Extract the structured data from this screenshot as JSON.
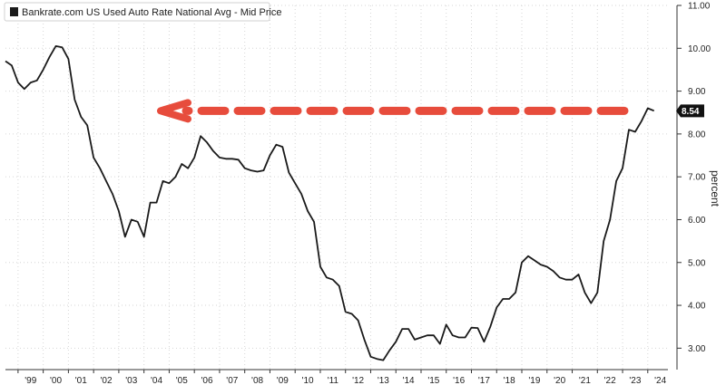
{
  "chart_data": {
    "type": "line",
    "title": "Bankrate.com US Used Auto Rate National Avg - Mid Price",
    "ylabel": "percent",
    "xlabel": "",
    "ylim": [
      2.5,
      11.0
    ],
    "xlim": [
      1998.5,
      2024.8
    ],
    "grid": true,
    "legend_position": "top-left",
    "y_ticks": [
      "3.00",
      "4.00",
      "5.00",
      "6.00",
      "7.00",
      "8.00",
      "9.00",
      "10.00",
      "11.00"
    ],
    "x_ticks": [
      "'99",
      "'00",
      "'01",
      "'02",
      "'03",
      "'04",
      "'05",
      "'06",
      "'07",
      "'08",
      "'09",
      "'10",
      "'11",
      "'12",
      "'13",
      "'14",
      "'15",
      "'16",
      "'17",
      "'18",
      "'19",
      "'20",
      "'21",
      "'22",
      "'23",
      "'24"
    ],
    "last_value_label": "8.54",
    "series": [
      {
        "name": "Bankrate.com US Used Auto Rate National Avg - Mid Price",
        "color": "#1a1a1a",
        "x": [
          1998.5,
          1998.75,
          1999.0,
          1999.25,
          1999.5,
          1999.75,
          2000.0,
          2000.25,
          2000.5,
          2000.75,
          2001.0,
          2001.25,
          2001.5,
          2001.75,
          2002.0,
          2002.25,
          2002.5,
          2002.75,
          2003.0,
          2003.25,
          2003.5,
          2003.75,
          2004.0,
          2004.25,
          2004.5,
          2004.75,
          2005.0,
          2005.25,
          2005.5,
          2005.75,
          2006.0,
          2006.25,
          2006.5,
          2006.75,
          2007.0,
          2007.25,
          2007.5,
          2007.75,
          2008.0,
          2008.25,
          2008.5,
          2008.75,
          2009.0,
          2009.25,
          2009.5,
          2009.75,
          2010.0,
          2010.25,
          2010.5,
          2010.75,
          2011.0,
          2011.25,
          2011.5,
          2011.75,
          2012.0,
          2012.25,
          2012.5,
          2012.75,
          2013.0,
          2013.25,
          2013.5,
          2013.75,
          2014.0,
          2014.25,
          2014.5,
          2014.75,
          2015.0,
          2015.25,
          2015.5,
          2015.75,
          2016.0,
          2016.25,
          2016.5,
          2016.75,
          2017.0,
          2017.25,
          2017.5,
          2017.75,
          2018.0,
          2018.25,
          2018.5,
          2018.75,
          2019.0,
          2019.25,
          2019.5,
          2019.75,
          2020.0,
          2020.25,
          2020.5,
          2020.75,
          2021.0,
          2021.25,
          2021.5,
          2021.75,
          2022.0,
          2022.25,
          2022.5,
          2022.75,
          2023.0,
          2023.25,
          2023.5,
          2023.75,
          2024.0,
          2024.25
        ],
        "values": [
          9.7,
          9.6,
          9.2,
          9.05,
          9.2,
          9.25,
          9.5,
          9.8,
          10.05,
          10.02,
          9.75,
          8.8,
          8.4,
          8.2,
          7.45,
          7.2,
          6.9,
          6.6,
          6.2,
          5.6,
          6.0,
          5.95,
          5.6,
          6.4,
          6.4,
          6.9,
          6.85,
          7.0,
          7.3,
          7.2,
          7.45,
          7.95,
          7.8,
          7.6,
          7.45,
          7.42,
          7.42,
          7.4,
          7.2,
          7.15,
          7.12,
          7.15,
          7.5,
          7.75,
          7.7,
          7.1,
          6.85,
          6.6,
          6.2,
          5.95,
          4.9,
          4.65,
          4.6,
          4.45,
          3.85,
          3.8,
          3.65,
          3.2,
          2.8,
          2.75,
          2.72,
          2.95,
          3.15,
          3.45,
          3.45,
          3.2,
          3.25,
          3.3,
          3.3,
          3.1,
          3.55,
          3.3,
          3.25,
          3.25,
          3.48,
          3.47,
          3.15,
          3.5,
          3.95,
          4.15,
          4.15,
          4.3,
          5.0,
          5.15,
          5.05,
          4.95,
          4.9,
          4.8,
          4.65,
          4.6,
          4.6,
          4.72,
          4.3,
          4.05,
          4.3,
          5.5,
          6.0,
          6.9,
          7.2,
          8.1,
          8.05,
          8.3,
          8.6,
          8.54
        ]
      }
    ]
  }
}
